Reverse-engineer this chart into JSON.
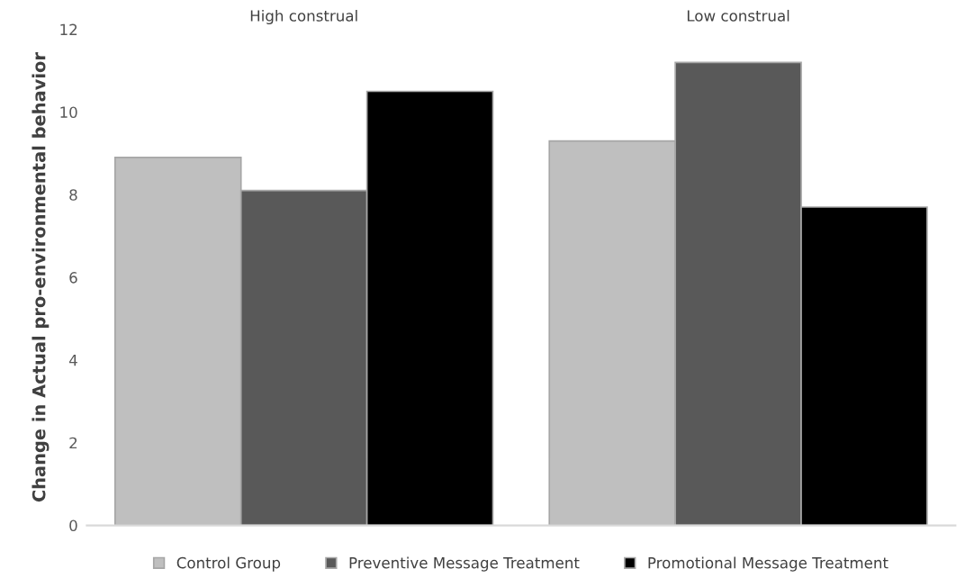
{
  "chart_data": {
    "type": "bar",
    "ylabel": "Change in Actual pro-environmental behavior",
    "categories": [
      "High construal",
      "Low construal"
    ],
    "series": [
      {
        "name": "Control Group",
        "color": "#bfbfbf",
        "values": [
          8.9,
          9.3
        ]
      },
      {
        "name": "Preventive Message Treatment",
        "color": "#595959",
        "values": [
          8.1,
          11.2
        ]
      },
      {
        "name": "Promotional Message Treatment",
        "color": "#000000",
        "values": [
          10.5,
          7.7
        ]
      }
    ],
    "ylim": [
      0,
      12
    ],
    "yticks": [
      0,
      2,
      4,
      6,
      8,
      10,
      12
    ],
    "grid": false,
    "legend": "bottom"
  }
}
